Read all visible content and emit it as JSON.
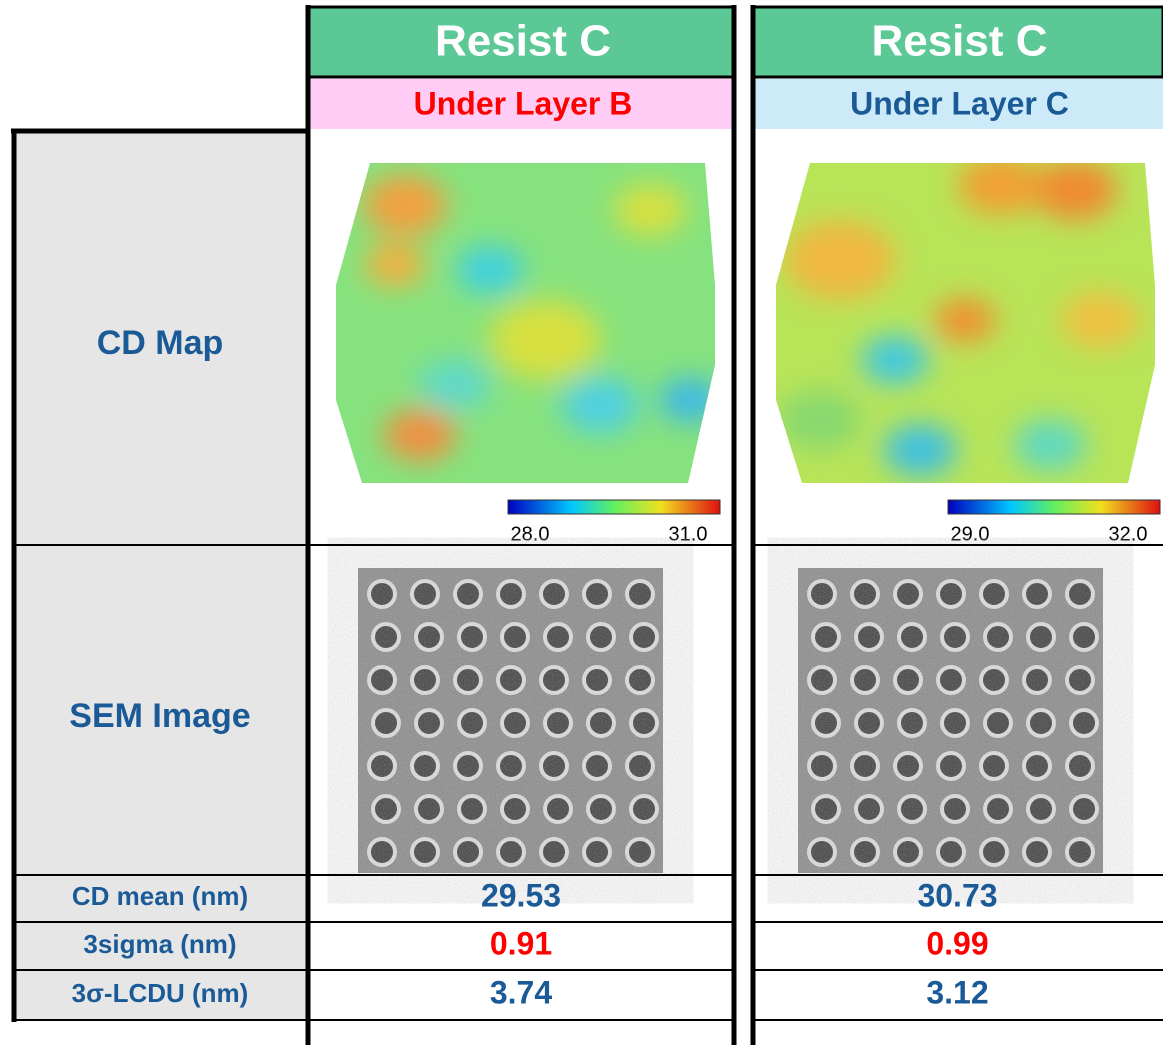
{
  "rows": [
    "CD Map",
    "SEM Image",
    "CD mean (nm)",
    "3sigma (nm)",
    "3σ-LCDU (nm)"
  ],
  "columns": [
    {
      "resist": "Resist C",
      "under_layer": "Under Layer B",
      "colorbar": {
        "min": "28.0",
        "max": "31.0"
      },
      "cd_mean": "29.53",
      "three_sigma": "0.91",
      "lcdu": "3.74"
    },
    {
      "resist": "Resist C",
      "under_layer": "Under Layer C",
      "colorbar": {
        "min": "29.0",
        "max": "32.0"
      },
      "cd_mean": "30.73",
      "three_sigma": "0.99",
      "lcdu": "3.12"
    }
  ]
}
